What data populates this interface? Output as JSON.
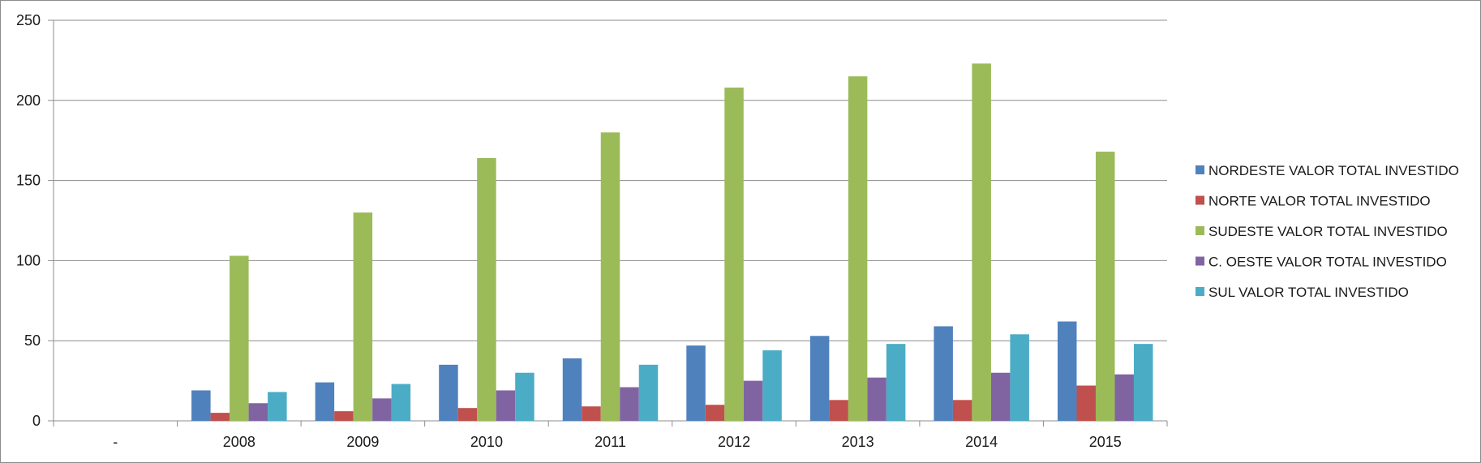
{
  "chart_data": {
    "type": "bar",
    "title": "",
    "xlabel": "",
    "ylabel": "",
    "ylim": [
      0,
      250
    ],
    "y_ticks": [
      0,
      50,
      100,
      150,
      200,
      250
    ],
    "y_tick_labels": [
      "0",
      "50",
      "100",
      "150",
      "200",
      "250"
    ],
    "categories": [
      "-",
      "2008",
      "2009",
      "2010",
      "2011",
      "2012",
      "2013",
      "2014",
      "2015"
    ],
    "grid": true,
    "legend_position": "right",
    "series": [
      {
        "name": "NORDESTE VALOR TOTAL INVESTIDO",
        "color": "#4f81bd",
        "values": [
          0,
          19,
          24,
          35,
          39,
          47,
          53,
          59,
          62
        ]
      },
      {
        "name": "NORTE VALOR TOTAL INVESTIDO",
        "color": "#c0504d",
        "values": [
          0,
          5,
          6,
          8,
          9,
          10,
          13,
          13,
          22
        ]
      },
      {
        "name": "SUDESTE VALOR TOTAL INVESTIDO",
        "color": "#9bbb59",
        "values": [
          0,
          103,
          130,
          164,
          180,
          208,
          215,
          223,
          168
        ]
      },
      {
        "name": "C. OESTE VALOR TOTAL INVESTIDO",
        "color": "#8064a2",
        "values": [
          0,
          11,
          14,
          19,
          21,
          25,
          27,
          30,
          29
        ]
      },
      {
        "name": "SUL VALOR TOTAL INVESTIDO",
        "color": "#4bacc6",
        "values": [
          0,
          18,
          23,
          30,
          35,
          44,
          48,
          54,
          48
        ]
      }
    ]
  }
}
